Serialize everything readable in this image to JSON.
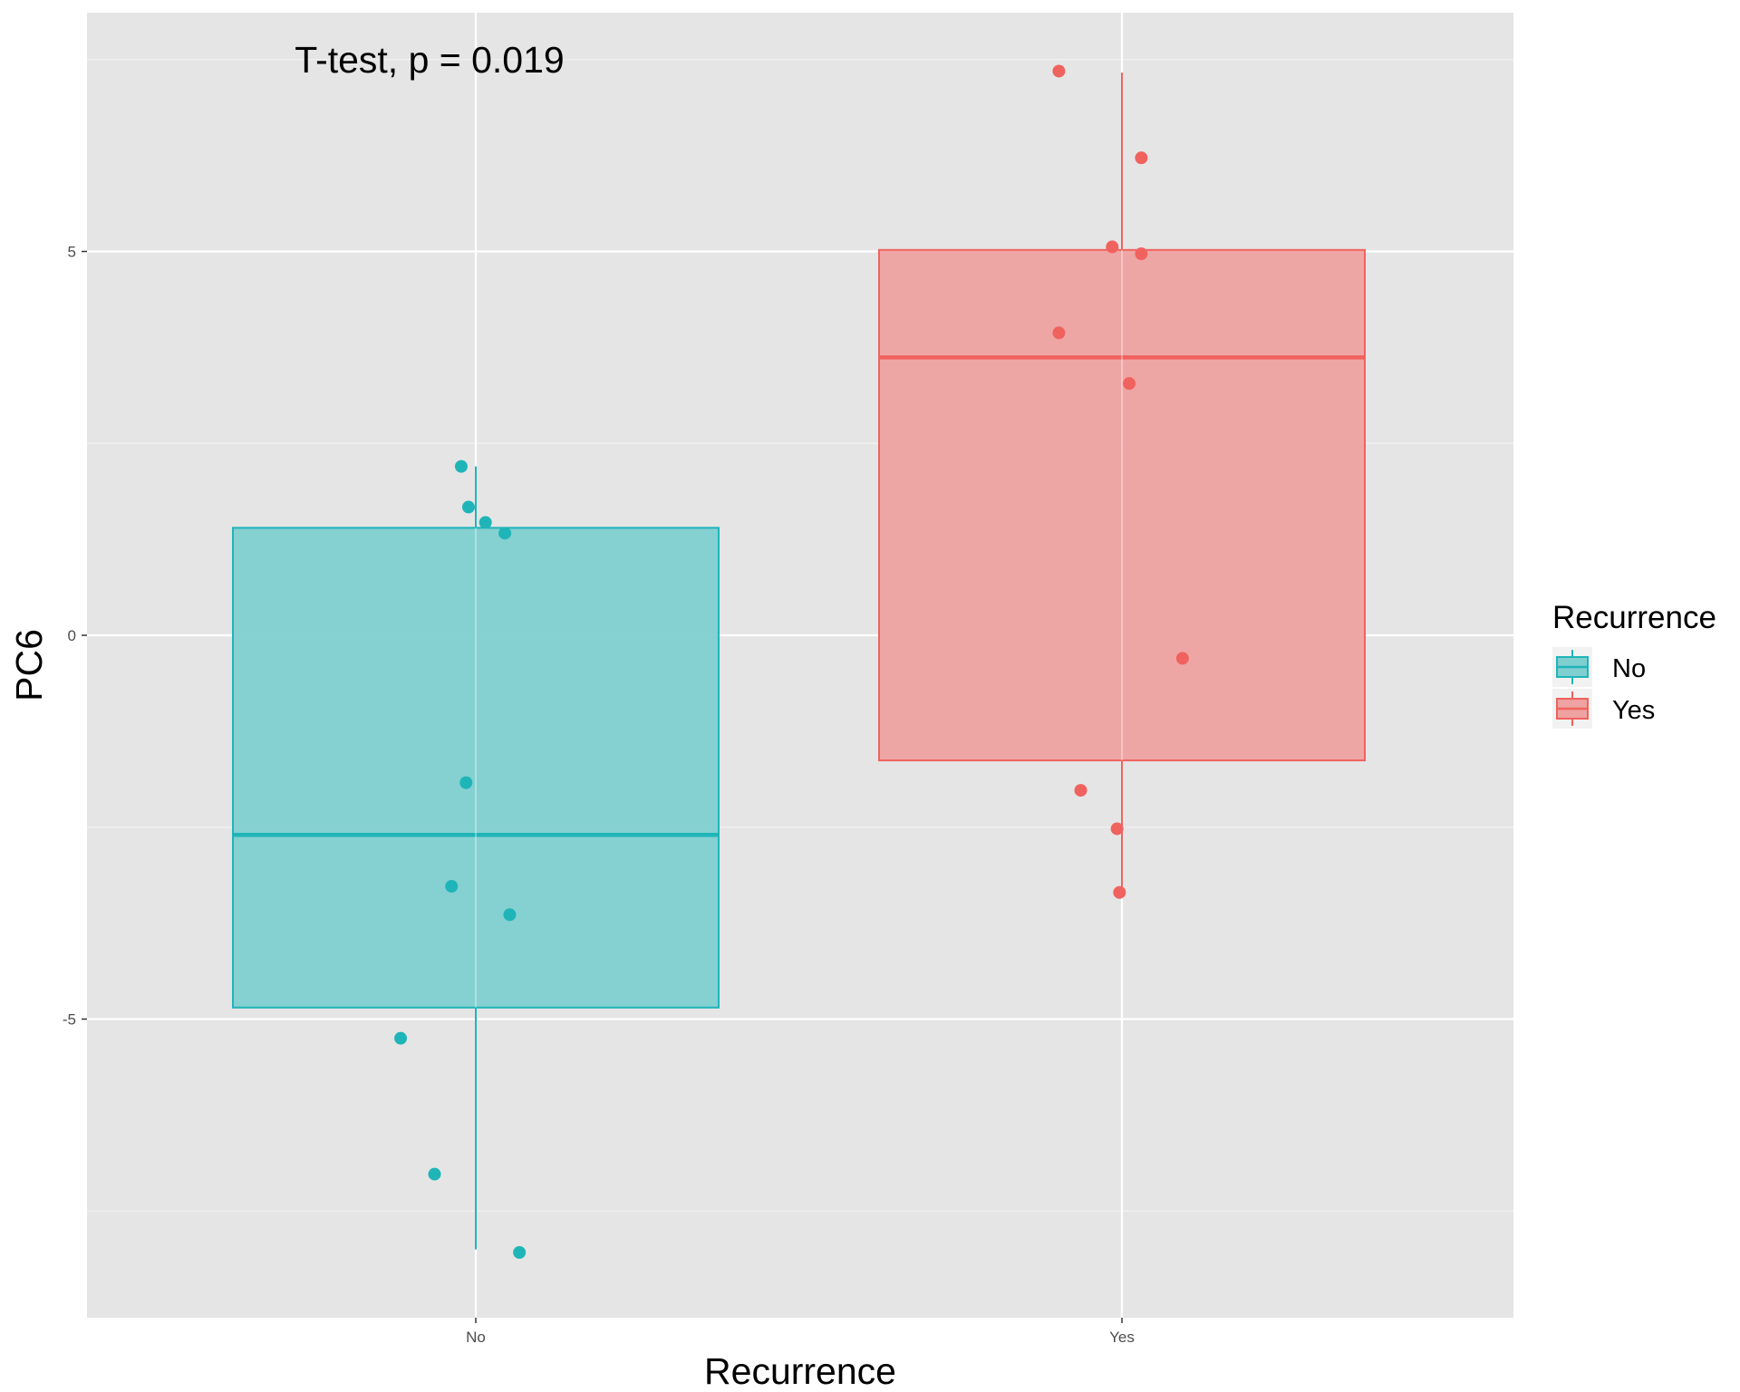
{
  "chart_data": {
    "type": "box",
    "annotation": "T-test, p = 0.019",
    "xlabel": "Recurrence",
    "ylabel": "PC6",
    "categories": [
      "No",
      "Yes"
    ],
    "ylim": [
      -9.1,
      8.1
    ],
    "yticks": [
      -5,
      0,
      5
    ],
    "ytick_labels": [
      "-5",
      "0",
      "5"
    ],
    "grid": true,
    "legend": {
      "title": "Recurrence",
      "position": "right",
      "items": [
        {
          "label": "No",
          "color": "#1fb5b8"
        },
        {
          "label": "Yes",
          "color": "#f0625e"
        }
      ]
    },
    "series": [
      {
        "name": "No",
        "color": "#1fb5b8",
        "fill": "#80cfd0",
        "box": {
          "whisker_low": -8.0,
          "q1": -4.85,
          "median": -2.6,
          "q3": 1.4,
          "whisker_high": 2.2
        },
        "points": [
          {
            "x": -0.03,
            "y": 2.2
          },
          {
            "x": -0.015,
            "y": 1.67
          },
          {
            "x": 0.02,
            "y": 1.47
          },
          {
            "x": 0.06,
            "y": 1.33
          },
          {
            "x": -0.02,
            "y": -1.92
          },
          {
            "x": -0.05,
            "y": -3.27
          },
          {
            "x": 0.07,
            "y": -3.64
          },
          {
            "x": -0.155,
            "y": -5.25
          },
          {
            "x": -0.085,
            "y": -7.02
          },
          {
            "x": 0.09,
            "y": -8.04
          }
        ]
      },
      {
        "name": "Yes",
        "color": "#f0625e",
        "fill": "#eea2a1",
        "box": {
          "whisker_low": -3.35,
          "q1": -1.63,
          "median": 3.62,
          "q3": 5.02,
          "whisker_high": 7.33
        },
        "points": [
          {
            "x": -0.13,
            "y": 7.35
          },
          {
            "x": 0.04,
            "y": 6.22
          },
          {
            "x": -0.02,
            "y": 5.06
          },
          {
            "x": 0.04,
            "y": 4.97
          },
          {
            "x": -0.13,
            "y": 3.94
          },
          {
            "x": 0.015,
            "y": 3.28
          },
          {
            "x": 0.125,
            "y": -0.3
          },
          {
            "x": -0.085,
            "y": -2.02
          },
          {
            "x": -0.01,
            "y": -2.52
          },
          {
            "x": -0.005,
            "y": -3.35
          }
        ]
      }
    ]
  }
}
